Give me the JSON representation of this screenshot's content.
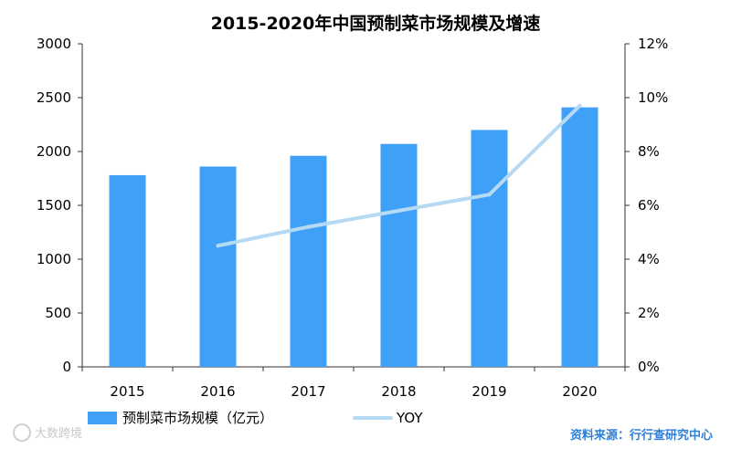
{
  "chart_data": {
    "type": "bar",
    "title": "2015-2020年中国预制菜市场规模及增速",
    "categories": [
      "2015",
      "2016",
      "2017",
      "2018",
      "2019",
      "2020"
    ],
    "series": [
      {
        "name": "预制菜市场规模（亿元）",
        "type": "bar",
        "axis": "left",
        "color": "#3fa0f7",
        "values": [
          1780,
          1860,
          1960,
          2070,
          2200,
          2410
        ]
      },
      {
        "name": "YOY",
        "type": "line",
        "axis": "right",
        "color": "#b6d9f4",
        "values": [
          null,
          0.045,
          0.052,
          0.058,
          0.064,
          0.097
        ]
      }
    ],
    "y_left": {
      "min": 0,
      "max": 3000,
      "ticks": [
        "0",
        "500",
        "1000",
        "1500",
        "2000",
        "2500",
        "3000"
      ]
    },
    "y_right": {
      "min": 0,
      "max": 0.12,
      "ticks": [
        "0%",
        "2%",
        "4%",
        "6%",
        "8%",
        "10%",
        "12%"
      ]
    },
    "grid": false,
    "legend_position": "bottom-left"
  },
  "source": "资料来源：行行查研究中心",
  "watermark": "大数跨境"
}
